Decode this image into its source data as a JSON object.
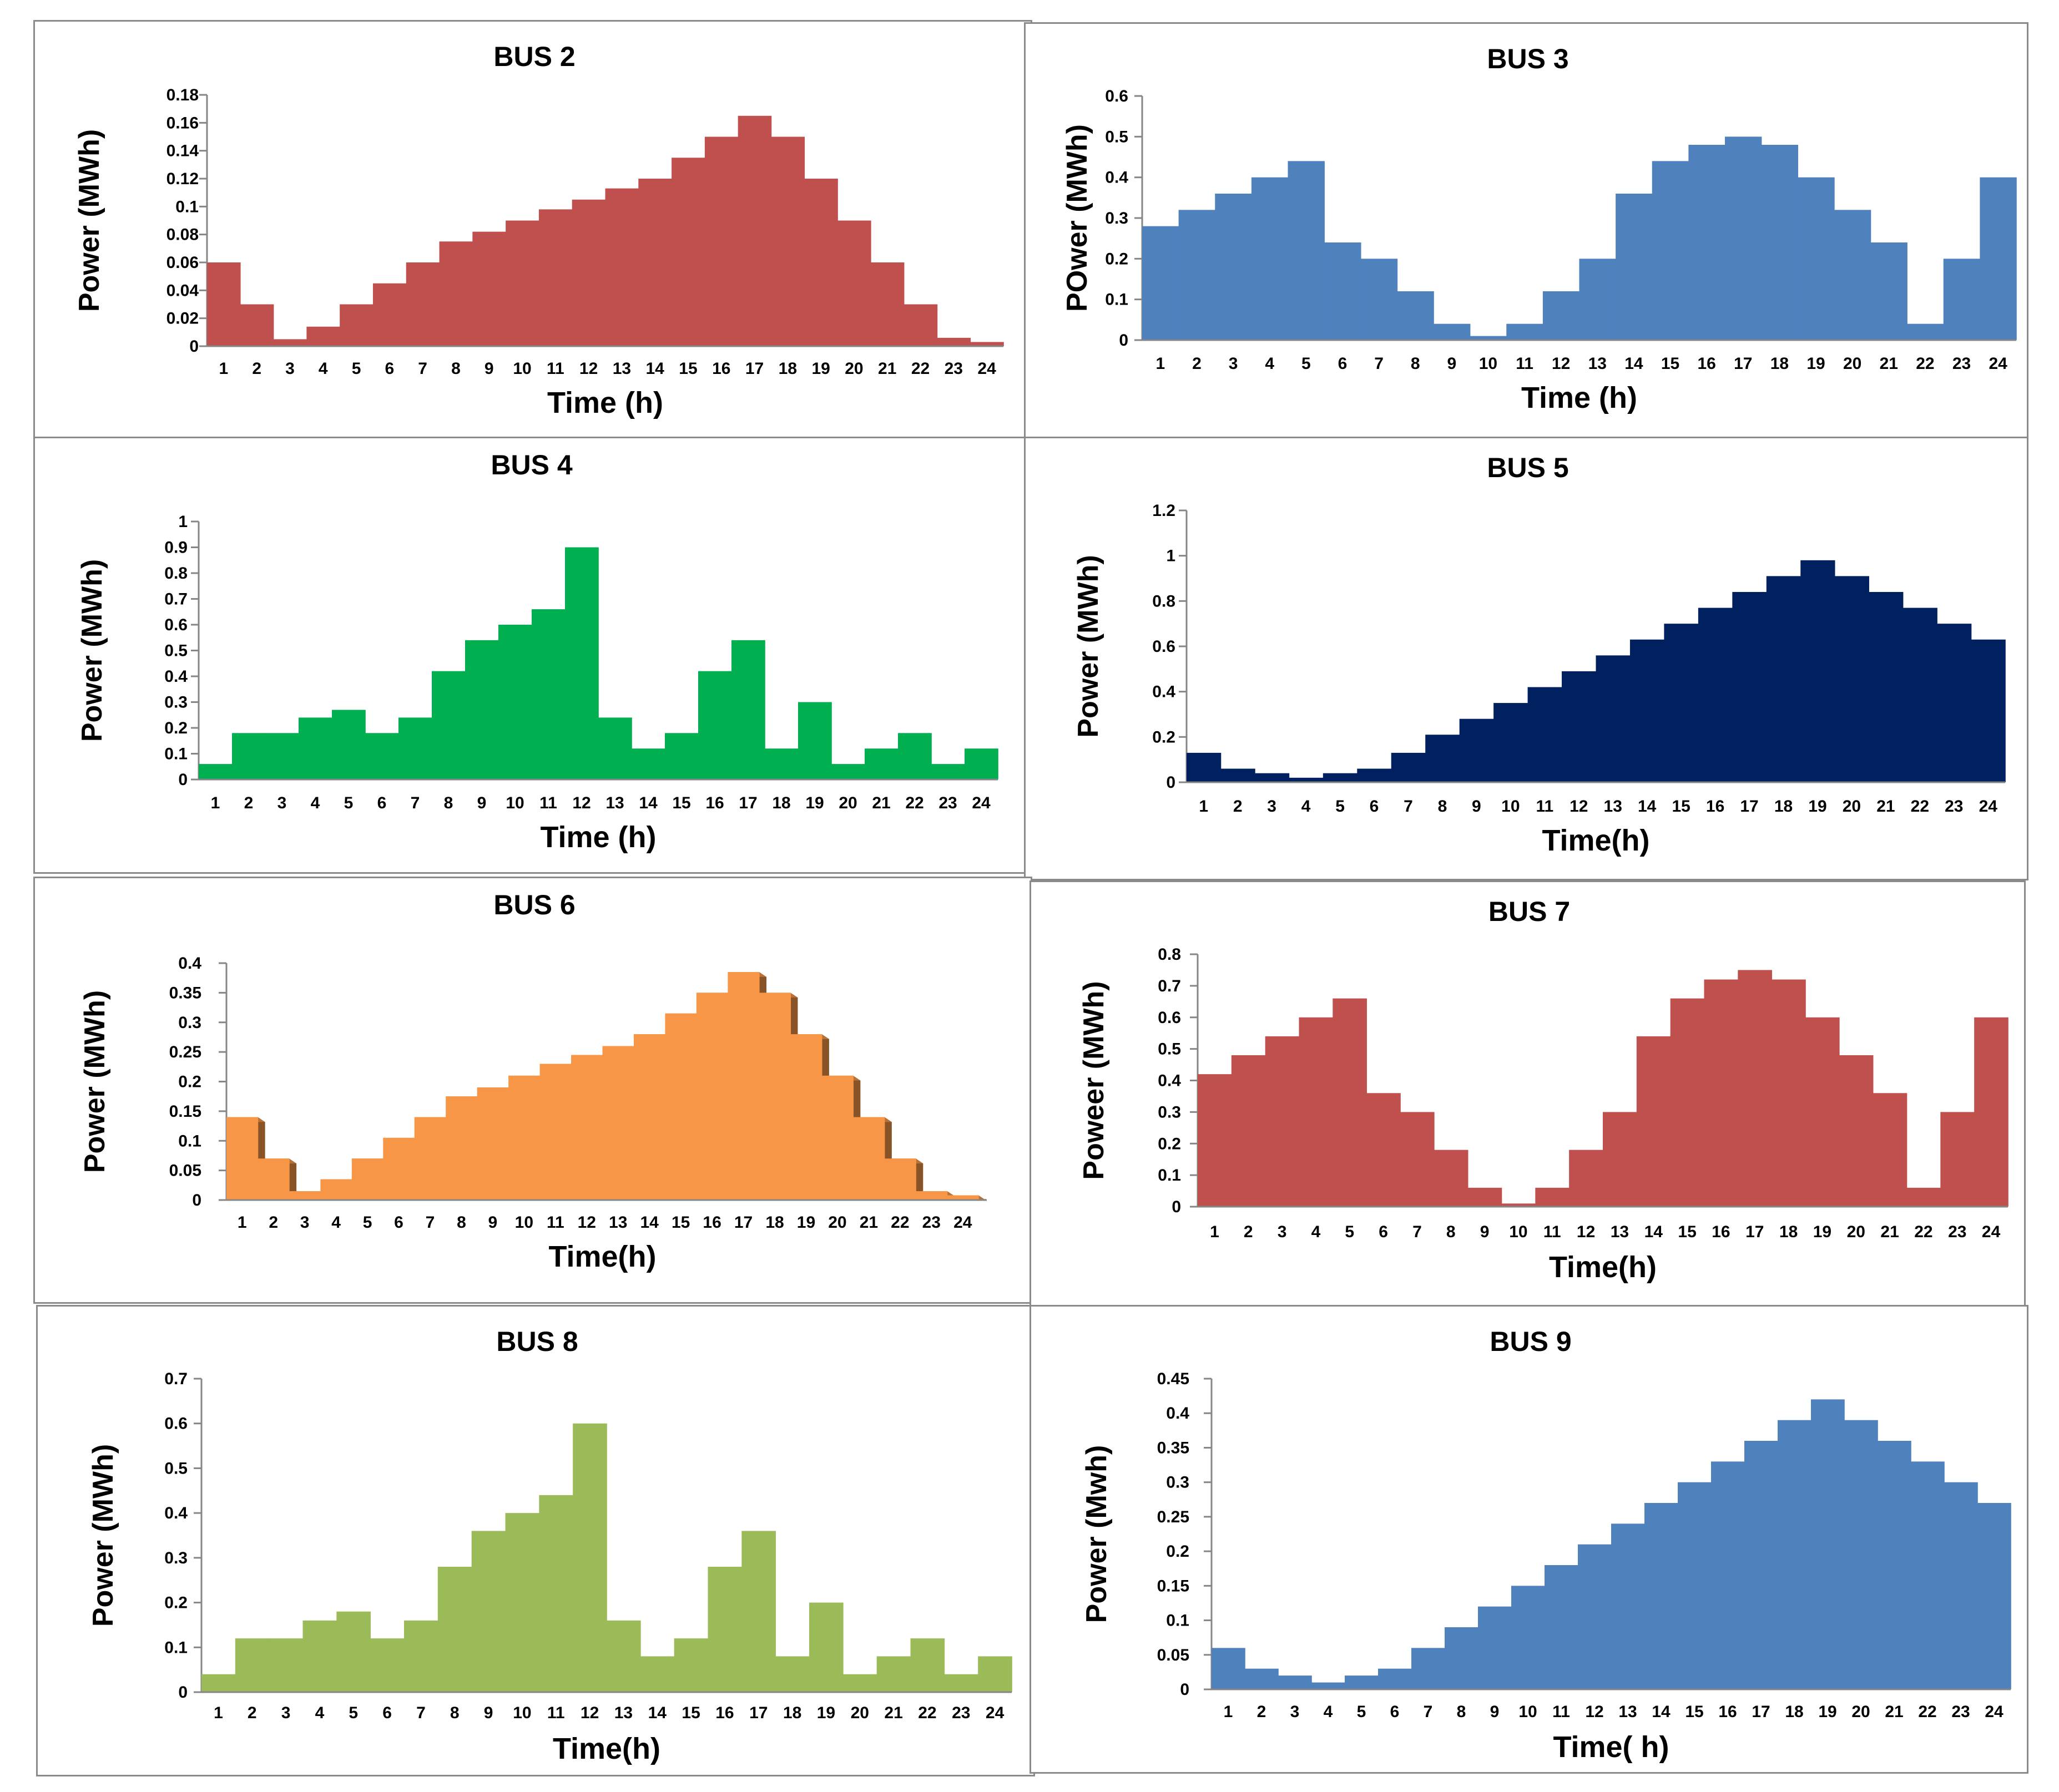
{
  "chart_data": [
    {
      "type": "bar",
      "title": "BUS 2",
      "xlabel": "Time (h)",
      "ylabel": "Power (MWh)",
      "color": "#c0504d",
      "ylim": [
        0,
        0.18
      ],
      "yticks": [
        "0",
        "0.02",
        "0.04",
        "0.06",
        "0.08",
        "0.1",
        "0.12",
        "0.14",
        "0.16",
        "0.18"
      ],
      "categories": [
        "1",
        "2",
        "3",
        "4",
        "5",
        "6",
        "7",
        "8",
        "9",
        "10",
        "11",
        "12",
        "13",
        "14",
        "15",
        "16",
        "17",
        "18",
        "19",
        "20",
        "21",
        "22",
        "23",
        "24"
      ],
      "values": [
        0.06,
        0.03,
        0.005,
        0.014,
        0.03,
        0.045,
        0.06,
        0.075,
        0.082,
        0.09,
        0.098,
        0.105,
        0.113,
        0.12,
        0.135,
        0.15,
        0.165,
        0.15,
        0.12,
        0.09,
        0.06,
        0.03,
        0.006,
        0.003
      ]
    },
    {
      "type": "bar",
      "title": "BUS 3",
      "xlabel": "Time (h)",
      "ylabel": "POwer (MWh)",
      "color": "#4f81bd",
      "ylim": [
        0,
        0.6
      ],
      "yticks": [
        "0",
        "0.1",
        "0.2",
        "0.3",
        "0.4",
        "0.5",
        "0.6"
      ],
      "categories": [
        "1",
        "2",
        "3",
        "4",
        "5",
        "6",
        "7",
        "8",
        "9",
        "10",
        "11",
        "12",
        "13",
        "14",
        "15",
        "16",
        "17",
        "18",
        "19",
        "20",
        "21",
        "22",
        "23",
        "24"
      ],
      "values": [
        0.28,
        0.32,
        0.36,
        0.4,
        0.44,
        0.24,
        0.2,
        0.12,
        0.04,
        0.01,
        0.04,
        0.12,
        0.2,
        0.36,
        0.44,
        0.48,
        0.5,
        0.48,
        0.4,
        0.32,
        0.24,
        0.04,
        0.2,
        0.4
      ]
    },
    {
      "type": "bar",
      "title": "BUS  4",
      "xlabel": "Time (h)",
      "ylabel": "Power (MWh)",
      "color": "#00b050",
      "ylim": [
        0,
        1
      ],
      "yticks": [
        "0",
        "0.1",
        "0.2",
        "0.3",
        "0.4",
        "0.5",
        "0.6",
        "0.7",
        "0.8",
        "0.9",
        "1"
      ],
      "categories": [
        "1",
        "2",
        "3",
        "4",
        "5",
        "6",
        "7",
        "8",
        "9",
        "10",
        "11",
        "12",
        "13",
        "14",
        "15",
        "16",
        "17",
        "18",
        "19",
        "20",
        "21",
        "22",
        "23",
        "24"
      ],
      "values": [
        0.06,
        0.18,
        0.18,
        0.24,
        0.27,
        0.18,
        0.24,
        0.42,
        0.54,
        0.6,
        0.66,
        0.9,
        0.24,
        0.12,
        0.18,
        0.42,
        0.54,
        0.12,
        0.3,
        0.06,
        0.12,
        0.18,
        0.06,
        0.12
      ]
    },
    {
      "type": "bar",
      "title": "BUS  5",
      "xlabel": "Time(h)",
      "ylabel": "Power (MWh)",
      "color": "#002060",
      "ylim": [
        0,
        1.2
      ],
      "yticks": [
        "0",
        "0.2",
        "0.4",
        "0.6",
        "0.8",
        "1",
        "1.2"
      ],
      "categories": [
        "1",
        "2",
        "3",
        "4",
        "5",
        "6",
        "7",
        "8",
        "9",
        "10",
        "11",
        "12",
        "13",
        "14",
        "15",
        "16",
        "17",
        "18",
        "19",
        "20",
        "21",
        "22",
        "23",
        "24"
      ],
      "values": [
        0.13,
        0.06,
        0.04,
        0.02,
        0.04,
        0.06,
        0.13,
        0.21,
        0.28,
        0.35,
        0.42,
        0.49,
        0.56,
        0.63,
        0.7,
        0.77,
        0.84,
        0.91,
        0.98,
        0.91,
        0.84,
        0.77,
        0.7,
        0.63
      ]
    },
    {
      "type": "bar",
      "title": "BUS 6",
      "xlabel": "Time(h)",
      "ylabel": "Power (MWh)",
      "color": "#f79646",
      "ylim": [
        0,
        0.4
      ],
      "yticks": [
        "0",
        "0.05",
        "0.1",
        "0.15",
        "0.2",
        "0.25",
        "0.3",
        "0.35",
        "0.4"
      ],
      "categories": [
        "1",
        "2",
        "3",
        "4",
        "5",
        "6",
        "7",
        "8",
        "9",
        "10",
        "11",
        "12",
        "13",
        "14",
        "15",
        "16",
        "17",
        "18",
        "19",
        "20",
        "21",
        "22",
        "23",
        "24"
      ],
      "values": [
        0.14,
        0.07,
        0.015,
        0.035,
        0.07,
        0.105,
        0.14,
        0.175,
        0.19,
        0.21,
        0.23,
        0.245,
        0.26,
        0.28,
        0.315,
        0.35,
        0.385,
        0.35,
        0.28,
        0.21,
        0.14,
        0.07,
        0.015,
        0.008
      ]
    },
    {
      "type": "bar",
      "title": "BUS 7",
      "xlabel": "Time(h)",
      "ylabel": "Poweer (MWh)",
      "color": "#c0504d",
      "ylim": [
        0,
        0.8
      ],
      "yticks": [
        "0",
        "0.1",
        "0.2",
        "0.3",
        "0.4",
        "0.5",
        "0.6",
        "0.7",
        "0.8"
      ],
      "categories": [
        "1",
        "2",
        "3",
        "4",
        "5",
        "6",
        "7",
        "8",
        "9",
        "10",
        "11",
        "12",
        "13",
        "14",
        "15",
        "16",
        "17",
        "18",
        "19",
        "20",
        "21",
        "22",
        "23",
        "24"
      ],
      "values": [
        0.42,
        0.48,
        0.54,
        0.6,
        0.66,
        0.36,
        0.3,
        0.18,
        0.06,
        0.01,
        0.06,
        0.18,
        0.3,
        0.54,
        0.66,
        0.72,
        0.75,
        0.72,
        0.6,
        0.48,
        0.36,
        0.06,
        0.3,
        0.6
      ]
    },
    {
      "type": "bar",
      "title": "BUS 8",
      "xlabel": "Time(h)",
      "ylabel": "Power (MWh)",
      "color": "#9bbb59",
      "ylim": [
        0,
        0.7
      ],
      "yticks": [
        "0",
        "0.1",
        "0.2",
        "0.3",
        "0.4",
        "0.5",
        "0.6",
        "0.7"
      ],
      "categories": [
        "1",
        "2",
        "3",
        "4",
        "5",
        "6",
        "7",
        "8",
        "9",
        "10",
        "11",
        "12",
        "13",
        "14",
        "15",
        "16",
        "17",
        "18",
        "19",
        "20",
        "21",
        "22",
        "23",
        "24"
      ],
      "values": [
        0.04,
        0.12,
        0.12,
        0.16,
        0.18,
        0.12,
        0.16,
        0.28,
        0.36,
        0.4,
        0.44,
        0.6,
        0.16,
        0.08,
        0.12,
        0.28,
        0.36,
        0.08,
        0.2,
        0.04,
        0.08,
        0.12,
        0.04,
        0.08
      ]
    },
    {
      "type": "bar",
      "title": "BUS 9",
      "xlabel": "Time( h)",
      "ylabel": "Power (Mwh)",
      "color": "#4f81bd",
      "ylim": [
        0,
        0.45
      ],
      "yticks": [
        "0",
        "0.05",
        "0.1",
        "0.15",
        "0.2",
        "0.25",
        "0.3",
        "0.35",
        "0.4",
        "0.45"
      ],
      "categories": [
        "1",
        "2",
        "3",
        "4",
        "5",
        "6",
        "7",
        "8",
        "9",
        "10",
        "11",
        "12",
        "13",
        "14",
        "15",
        "16",
        "17",
        "18",
        "19",
        "20",
        "21",
        "22",
        "23",
        "24"
      ],
      "values": [
        0.06,
        0.03,
        0.02,
        0.01,
        0.02,
        0.03,
        0.06,
        0.09,
        0.12,
        0.15,
        0.18,
        0.21,
        0.24,
        0.27,
        0.3,
        0.33,
        0.36,
        0.39,
        0.42,
        0.39,
        0.36,
        0.33,
        0.3,
        0.27
      ]
    }
  ]
}
